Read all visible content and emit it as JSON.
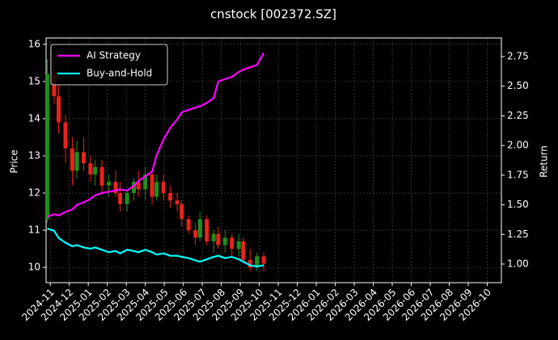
{
  "chart_data": {
    "type": "candlestick_with_returns",
    "title": "cnstock [002372.SZ]",
    "y_label": "Price",
    "y2_label": "Return",
    "grid": true,
    "legend": "upper left",
    "xlim": [
      2024.815,
      2026.812
    ],
    "xticks": [
      {
        "value": 2024.8333,
        "label": "2024-11"
      },
      {
        "value": 2024.9167,
        "label": "2024-12"
      },
      {
        "value": 2025.0,
        "label": "2025-01"
      },
      {
        "value": 2025.0833,
        "label": "2025-02"
      },
      {
        "value": 2025.1667,
        "label": "2025-03"
      },
      {
        "value": 2025.25,
        "label": "2025-04"
      },
      {
        "value": 2025.3333,
        "label": "2025-05"
      },
      {
        "value": 2025.4167,
        "label": "2025-06"
      },
      {
        "value": 2025.5,
        "label": "2025-07"
      },
      {
        "value": 2025.5833,
        "label": "2025-08"
      },
      {
        "value": 2025.6667,
        "label": "2025-09"
      },
      {
        "value": 2025.75,
        "label": "2025-10"
      },
      {
        "value": 2025.8333,
        "label": "2025-11"
      },
      {
        "value": 2025.9167,
        "label": "2025-12"
      },
      {
        "value": 2026.0,
        "label": "2026-01"
      },
      {
        "value": 2026.0833,
        "label": "2026-02"
      },
      {
        "value": 2026.1667,
        "label": "2026-03"
      },
      {
        "value": 2026.25,
        "label": "2026-04"
      },
      {
        "value": 2026.3333,
        "label": "2026-05"
      },
      {
        "value": 2026.4167,
        "label": "2026-06"
      },
      {
        "value": 2026.5,
        "label": "2026-07"
      },
      {
        "value": 2026.5833,
        "label": "2026-08"
      },
      {
        "value": 2026.6667,
        "label": "2026-09"
      },
      {
        "value": 2026.75,
        "label": "2026-10"
      }
    ],
    "ylim": [
      9.59,
      16.17
    ],
    "yticks": [
      10,
      11,
      12,
      13,
      14,
      15,
      16
    ],
    "y2lim": [
      0.843,
      2.907
    ],
    "y2ticks": [
      {
        "value": 1,
        "label": "1.00"
      },
      1.25,
      {
        "value": 1.5,
        "label": "1.50"
      },
      1.75,
      {
        "value": 2,
        "label": "2.00"
      },
      2.25,
      {
        "value": 2.5,
        "label": "2.50"
      },
      2.75
    ],
    "x": [
      2024.82,
      2024.85,
      2024.87,
      2024.9,
      2024.93,
      2024.95,
      2024.98,
      2025.01,
      2025.03,
      2025.06,
      2025.09,
      2025.12,
      2025.14,
      2025.17,
      2025.2,
      2025.22,
      2025.25,
      2025.28,
      2025.3,
      2025.33,
      2025.36,
      2025.39,
      2025.41,
      2025.44,
      2025.47,
      2025.49,
      2025.52,
      2025.55,
      2025.57,
      2025.6,
      2025.63,
      2025.66,
      2025.68,
      2025.71,
      2025.74,
      2025.77
    ],
    "candles": {
      "up_color": "#1f8f1f",
      "down_color": "#e8231b",
      "open": [
        11.3,
        15.2,
        14.6,
        13.9,
        13.2,
        12.6,
        13.1,
        12.8,
        12.5,
        12.7,
        12.2,
        12.3,
        12.0,
        11.7,
        12.0,
        12.3,
        12.1,
        12.5,
        11.9,
        12.3,
        12.0,
        11.8,
        11.7,
        11.3,
        11.0,
        10.8,
        11.3,
        10.7,
        10.9,
        10.6,
        10.8,
        10.5,
        10.7,
        10.2,
        10.0,
        10.3
      ],
      "high": [
        15.6,
        15.8,
        14.9,
        14.1,
        13.5,
        13.4,
        13.5,
        13.0,
        12.9,
        12.9,
        12.5,
        12.6,
        12.3,
        12.1,
        12.4,
        12.6,
        12.7,
        12.6,
        12.5,
        12.5,
        12.2,
        12.0,
        11.8,
        11.4,
        11.2,
        11.5,
        11.4,
        11.0,
        11.1,
        11.0,
        10.9,
        10.9,
        10.8,
        10.5,
        10.4,
        10.4
      ],
      "low": [
        11.2,
        14.4,
        13.6,
        12.8,
        12.2,
        12.4,
        12.6,
        12.3,
        12.2,
        12.0,
        11.9,
        11.9,
        11.5,
        11.5,
        11.8,
        11.9,
        11.8,
        11.7,
        11.8,
        11.8,
        11.6,
        11.5,
        11.1,
        10.9,
        10.6,
        10.7,
        10.6,
        10.4,
        10.5,
        10.4,
        10.3,
        10.3,
        10.1,
        9.9,
        9.9,
        9.9
      ],
      "close": [
        15.2,
        14.6,
        13.9,
        13.2,
        12.6,
        13.1,
        12.8,
        12.5,
        12.7,
        12.2,
        12.3,
        12.0,
        11.7,
        12.0,
        12.3,
        12.1,
        12.5,
        11.9,
        12.3,
        12.0,
        11.8,
        11.7,
        11.3,
        11.0,
        10.8,
        11.3,
        10.7,
        10.9,
        10.6,
        10.8,
        10.5,
        10.7,
        10.2,
        10.0,
        10.3,
        10.1
      ]
    },
    "series": [
      {
        "name": "AI Strategy",
        "color": "#ff00ff",
        "axis": "y2",
        "values": [
          1.4,
          1.42,
          1.41,
          1.44,
          1.46,
          1.5,
          1.52,
          1.55,
          1.58,
          1.6,
          1.61,
          1.62,
          1.63,
          1.62,
          1.66,
          1.7,
          1.74,
          1.78,
          1.92,
          2.05,
          2.15,
          2.22,
          2.28,
          2.3,
          2.32,
          2.33,
          2.36,
          2.4,
          2.54,
          2.56,
          2.58,
          2.62,
          2.64,
          2.66,
          2.68,
          2.78
        ]
      },
      {
        "name": "Buy-and-Hold",
        "color": "#00ffff",
        "axis": "y2",
        "values": [
          1.3,
          1.28,
          1.22,
          1.18,
          1.15,
          1.16,
          1.14,
          1.13,
          1.14,
          1.12,
          1.1,
          1.11,
          1.09,
          1.12,
          1.11,
          1.1,
          1.12,
          1.1,
          1.08,
          1.09,
          1.07,
          1.07,
          1.06,
          1.05,
          1.03,
          1.02,
          1.04,
          1.06,
          1.07,
          1.05,
          1.06,
          1.04,
          1.02,
          0.99,
          0.98,
          0.99
        ]
      }
    ]
  }
}
